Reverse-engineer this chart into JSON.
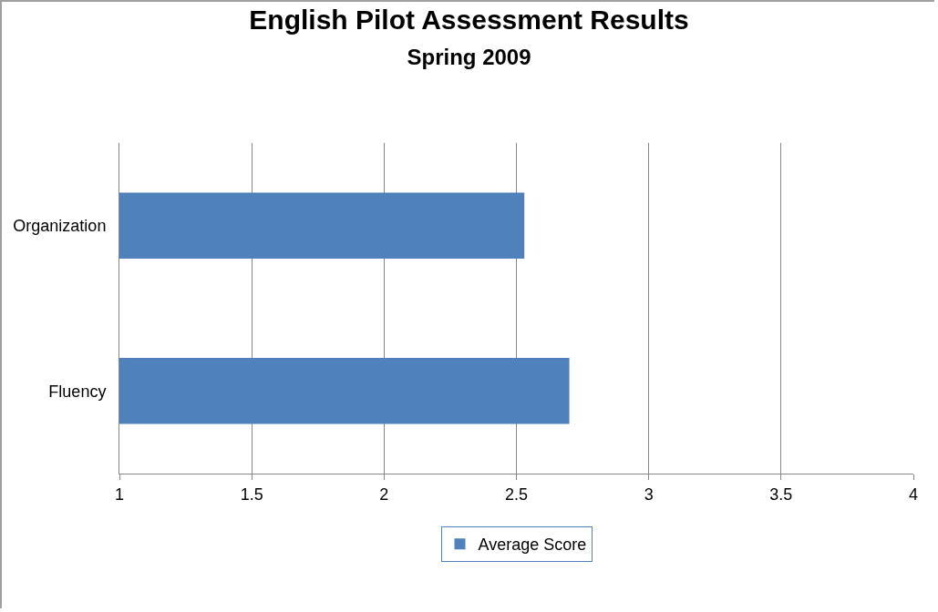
{
  "chart_data": {
    "type": "bar",
    "orientation": "horizontal",
    "title": "English Pilot Assessment Results",
    "subtitle": "Spring 2009",
    "categories": [
      "Organization",
      "Fluency"
    ],
    "series": [
      {
        "name": "Average Score",
        "color": "#4f81bd",
        "values": [
          2.53,
          2.7
        ]
      }
    ],
    "xlim": [
      1,
      4
    ],
    "xticks": [
      1,
      1.5,
      2,
      2.5,
      3,
      3.5,
      4
    ],
    "grid": "x",
    "legend": "bottom"
  }
}
